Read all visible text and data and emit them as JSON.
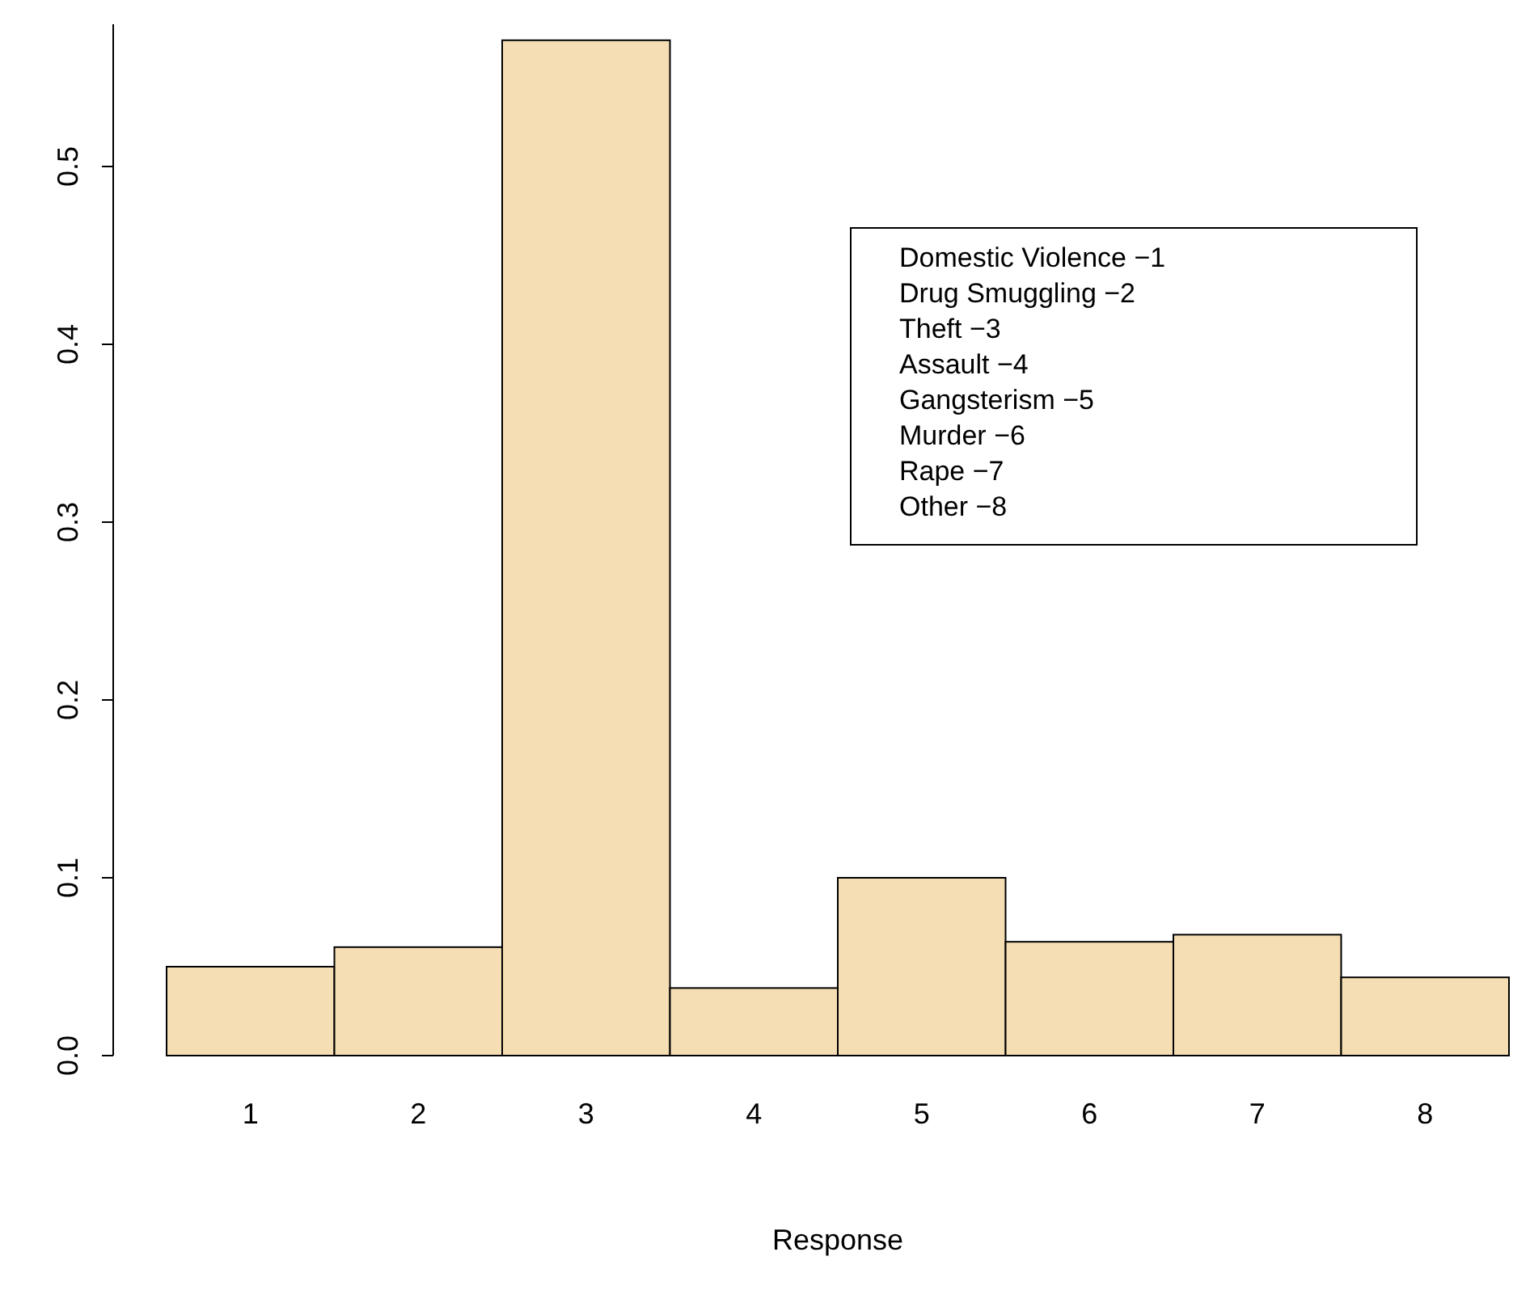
{
  "chart_data": {
    "type": "bar",
    "xlabel": "Response",
    "categories": [
      "1",
      "2",
      "3",
      "4",
      "5",
      "6",
      "7",
      "8"
    ],
    "values": [
      0.05,
      0.061,
      0.571,
      0.038,
      0.1,
      0.064,
      0.068,
      0.044
    ],
    "color": "#f5deb3",
    "ylim": [
      0,
      0.58
    ],
    "yticks": [
      {
        "value": 0,
        "label": "0.0"
      },
      {
        "value": 0.1,
        "label": "0.1"
      },
      {
        "value": 0.2,
        "label": "0.2"
      },
      {
        "value": 0.3,
        "label": "0.3"
      },
      {
        "value": 0.4,
        "label": "0.4"
      },
      {
        "value": 0.5,
        "label": "0.5"
      }
    ],
    "annotations": [
      "Domestic Violence −1",
      "Drug Smuggling −2",
      "Theft −3",
      "Assault −4",
      "Gangsterism −5",
      "Murder −6",
      "Rape −7",
      "Other −8"
    ]
  }
}
